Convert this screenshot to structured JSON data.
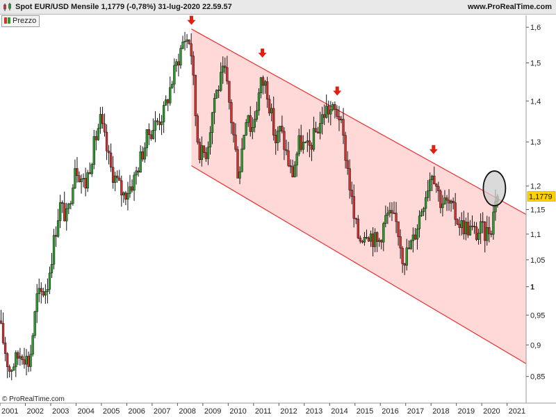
{
  "header": {
    "title": "Spot EUR/USD Mensile 1,1779 (-0,78%) 31-lug-2020 22.59.57",
    "site": "www.ProRealTime.com"
  },
  "legend": {
    "label": "Prezzo"
  },
  "footer": {
    "copyright": "© ProRealTime.com"
  },
  "colors": {
    "up": "#2a9d2a",
    "down": "#d43030",
    "wick": "#111111",
    "channel_line": "#e8302e",
    "channel_fill": "#ffd6d6",
    "arrow": "#e02010",
    "price_tag": "#ffd200",
    "circle_fill": "#cdcdcd"
  },
  "chart_data": {
    "type": "candlestick",
    "title": "Spot EUR/USD Mensile 1,1779 (-0,78%) 31-lug-2020 22.59.57",
    "xlabel": "",
    "ylabel": "",
    "x_range": [
      2001.0,
      2021.75
    ],
    "ylim": [
      0.81,
      1.635
    ],
    "log_scale": true,
    "grid": false,
    "x_ticks": [
      "2001",
      "2002",
      "2003",
      "2004",
      "2005",
      "2006",
      "2007",
      "2008",
      "2009",
      "2010",
      "2011",
      "2012",
      "2013",
      "2014",
      "2015",
      "2016",
      "2017",
      "2018",
      "2019",
      "2020",
      "2021"
    ],
    "y_ticks": [
      {
        "value": 0.85,
        "label": "0,85"
      },
      {
        "value": 0.9,
        "label": "0,9"
      },
      {
        "value": 0.95,
        "label": "0,95"
      },
      {
        "value": 1.0,
        "label": "1"
      },
      {
        "value": 1.05,
        "label": "1,05"
      },
      {
        "value": 1.1,
        "label": "1,1"
      },
      {
        "value": 1.15,
        "label": "1,15"
      },
      {
        "value": 1.2,
        "label": "1,2"
      },
      {
        "value": 1.3,
        "label": "1,3"
      },
      {
        "value": 1.4,
        "label": "1,4"
      },
      {
        "value": 1.5,
        "label": "1,5"
      },
      {
        "value": 1.6,
        "label": "1,6"
      }
    ],
    "last_price": {
      "value": 1.1779,
      "label": "1,1779"
    },
    "anchors": [
      [
        2001.0,
        0.94
      ],
      [
        2001.4,
        0.86
      ],
      [
        2001.9,
        0.89
      ],
      [
        2002.2,
        0.87
      ],
      [
        2002.5,
        0.98
      ],
      [
        2002.9,
        1.0
      ],
      [
        2003.4,
        1.16
      ],
      [
        2003.7,
        1.13
      ],
      [
        2004.0,
        1.25
      ],
      [
        2004.4,
        1.2
      ],
      [
        2004.9,
        1.33
      ],
      [
        2005.0,
        1.35
      ],
      [
        2005.4,
        1.24
      ],
      [
        2005.9,
        1.18
      ],
      [
        2006.3,
        1.21
      ],
      [
        2006.9,
        1.32
      ],
      [
        2007.5,
        1.37
      ],
      [
        2007.9,
        1.47
      ],
      [
        2008.3,
        1.57
      ],
      [
        2008.55,
        1.56
      ],
      [
        2008.8,
        1.32
      ],
      [
        2008.95,
        1.27
      ],
      [
        2009.2,
        1.28
      ],
      [
        2009.5,
        1.41
      ],
      [
        2009.9,
        1.48
      ],
      [
        2010.45,
        1.22
      ],
      [
        2010.8,
        1.39
      ],
      [
        2010.95,
        1.32
      ],
      [
        2011.35,
        1.45
      ],
      [
        2011.55,
        1.44
      ],
      [
        2011.9,
        1.3
      ],
      [
        2012.1,
        1.33
      ],
      [
        2012.55,
        1.22
      ],
      [
        2012.85,
        1.3
      ],
      [
        2013.2,
        1.28
      ],
      [
        2013.55,
        1.33
      ],
      [
        2013.9,
        1.38
      ],
      [
        2014.4,
        1.37
      ],
      [
        2014.7,
        1.26
      ],
      [
        2015.0,
        1.13
      ],
      [
        2015.2,
        1.09
      ],
      [
        2015.5,
        1.11
      ],
      [
        2015.95,
        1.08
      ],
      [
        2016.3,
        1.14
      ],
      [
        2016.7,
        1.12
      ],
      [
        2016.95,
        1.05
      ],
      [
        2017.35,
        1.09
      ],
      [
        2017.8,
        1.18
      ],
      [
        2018.1,
        1.24
      ],
      [
        2018.4,
        1.17
      ],
      [
        2018.75,
        1.16
      ],
      [
        2019.2,
        1.12
      ],
      [
        2019.6,
        1.11
      ],
      [
        2019.85,
        1.1
      ],
      [
        2020.0,
        1.11
      ],
      [
        2020.2,
        1.1
      ],
      [
        2020.45,
        1.12
      ],
      [
        2020.58,
        1.1779
      ]
    ],
    "channel": {
      "upper": [
        [
          2008.55,
          1.595
        ],
        [
          2021.75,
          1.14
        ]
      ],
      "lower": [
        [
          2008.55,
          1.245
        ],
        [
          2021.75,
          0.87
        ]
      ]
    },
    "peak_arrows": [
      {
        "x": 2008.55,
        "y": 1.615
      },
      {
        "x": 2011.35,
        "y": 1.522
      },
      {
        "x": 2014.3,
        "y": 1.421
      },
      {
        "x": 2018.1,
        "y": 1.278
      }
    ],
    "highlight_circle": {
      "x": 2020.5,
      "y": 1.195
    }
  }
}
